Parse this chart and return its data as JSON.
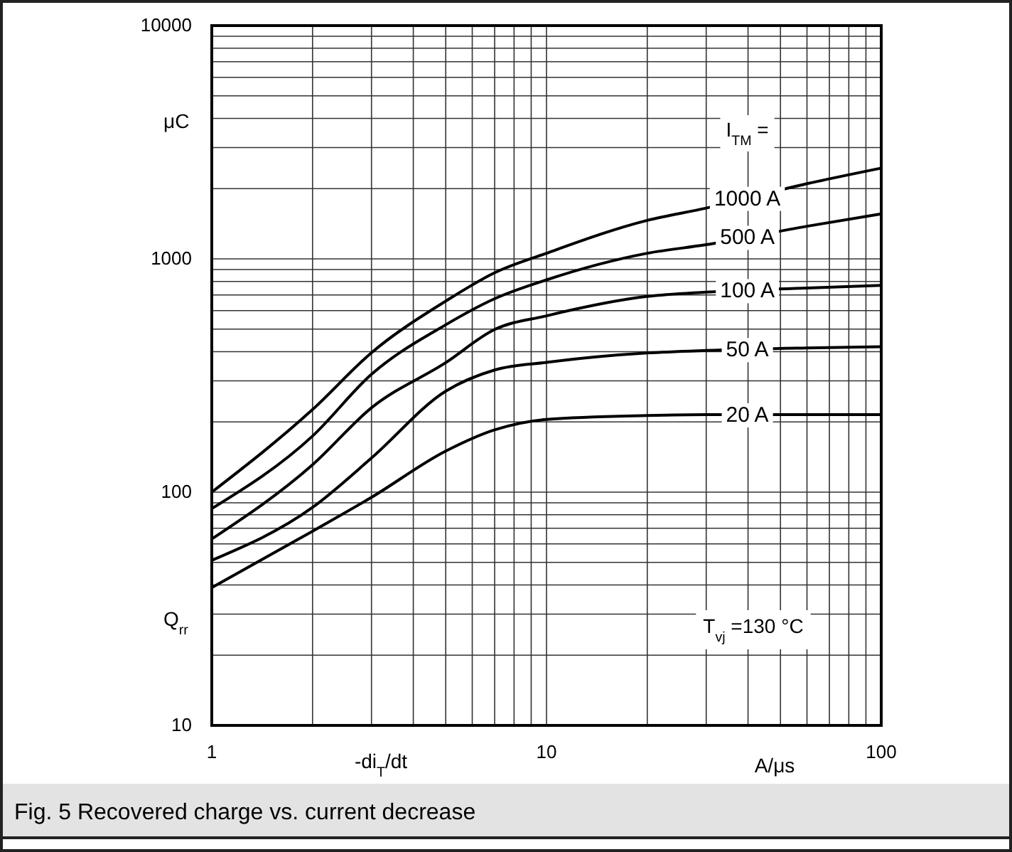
{
  "chart_data": {
    "type": "line",
    "ylabel": "Q$_{rr}$",
    "xlabel": "-di$_{T}$/dt",
    "legend_title": "I$_{TM}$ =",
    "annotations": [
      "μC",
      "A/μs",
      "T$_{vj}$ =130 °C",
      "Fig. 5 Recovered charge vs. current decrease"
    ],
    "x": [
      1,
      2,
      3,
      5,
      7,
      10,
      20,
      30,
      60,
      100
    ],
    "series": [
      {
        "name": "1000 A",
        "color": "#000000",
        "values": [
          100,
          226,
          396,
          659,
          872,
          1057,
          1462,
          1650,
          2100,
          2450
        ]
      },
      {
        "name": "500 A",
        "color": "#000000",
        "values": [
          85,
          174,
          320,
          522,
          675,
          813,
          1057,
          1150,
          1380,
          1560
        ]
      },
      {
        "name": "100 A",
        "color": "#000000",
        "values": [
          63,
          131,
          230,
          359,
          498,
          570,
          690,
          720,
          750,
          770
        ]
      },
      {
        "name": "50 A",
        "color": "#000000",
        "values": [
          51,
          86,
          140,
          271,
          334,
          360,
          395,
          405,
          415,
          420
        ]
      },
      {
        "name": "20 A",
        "color": "#000000",
        "values": [
          39,
          68,
          95,
          150,
          185,
          205,
          213,
          215,
          215,
          215
        ]
      }
    ],
    "log": "xy",
    "xlim": [
      1,
      100
    ],
    "ylim": [
      10,
      10000
    ],
    "xticks": [
      1,
      {
        "value": 2,
        "label": null
      },
      {
        "value": 3,
        "label": null
      },
      {
        "value": 4,
        "label": null
      },
      {
        "value": 5,
        "label": null
      },
      {
        "value": 6,
        "label": null
      },
      {
        "value": 7,
        "label": null
      },
      {
        "value": 8,
        "label": null
      },
      {
        "value": 9,
        "label": null
      },
      10,
      {
        "value": 20,
        "label": null
      },
      {
        "value": 30,
        "label": null
      },
      {
        "value": 40,
        "label": null
      },
      {
        "value": 50,
        "label": null
      },
      {
        "value": 60,
        "label": null
      },
      {
        "value": 70,
        "label": null
      },
      {
        "value": 80,
        "label": null
      },
      {
        "value": 90,
        "label": null
      },
      100
    ],
    "yticks": [
      10,
      {
        "value": 20,
        "label": null
      },
      {
        "value": 30,
        "label": null
      },
      {
        "value": 40,
        "label": null
      },
      {
        "value": 50,
        "label": null
      },
      {
        "value": 60,
        "label": null
      },
      {
        "value": 70,
        "label": null
      },
      {
        "value": 80,
        "label": null
      },
      {
        "value": 90,
        "label": null
      },
      100,
      {
        "value": 200,
        "label": null
      },
      {
        "value": 300,
        "label": null
      },
      {
        "value": 400,
        "label": null
      },
      {
        "value": 500,
        "label": null
      },
      {
        "value": 600,
        "label": null
      },
      {
        "value": 700,
        "label": null
      },
      {
        "value": 800,
        "label": null
      },
      {
        "value": 900,
        "label": null
      },
      1000,
      {
        "value": 2000,
        "label": null
      },
      {
        "value": 3000,
        "label": null
      },
      {
        "value": 4000,
        "label": null
      },
      {
        "value": 5000,
        "label": null
      },
      {
        "value": 6000,
        "label": null
      },
      {
        "value": 7000,
        "label": null
      },
      {
        "value": 8000,
        "label": null
      },
      {
        "value": 9000,
        "label": null
      },
      10000
    ],
    "grid": true,
    "legend": "right",
    "line_style": "solid",
    "marker": "none"
  }
}
